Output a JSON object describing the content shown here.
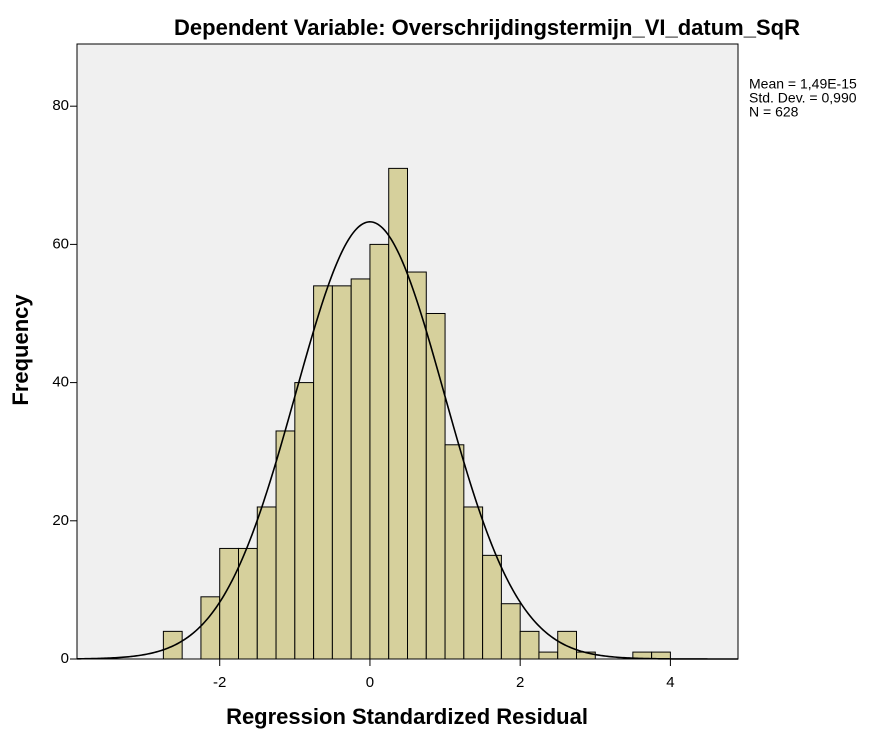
{
  "chart_data": {
    "type": "histogram",
    "title": "Dependent Variable: Overschrijdingstermijn_VI_datum_SqR",
    "xlabel": "Regression Standardized Residual",
    "ylabel": "Frequency",
    "bins": [
      -2.75,
      -2.5,
      -2.25,
      -2.0,
      -1.75,
      -1.5,
      -1.25,
      -1.0,
      -0.75,
      -0.5,
      -0.25,
      0,
      0.25,
      0.5,
      0.75,
      1.0,
      1.25,
      1.5,
      1.75,
      2.0,
      2.25,
      2.5,
      2.75,
      3.0,
      3.25,
      3.5,
      3.75,
      4.0
    ],
    "values": [
      4,
      0,
      9,
      16,
      16,
      22,
      33,
      40,
      54,
      54,
      55,
      60,
      71,
      56,
      50,
      31,
      22,
      15,
      8,
      4,
      1,
      4,
      1,
      0,
      0,
      1,
      1
    ],
    "color": "#d6d09c",
    "xlim": [
      -3.9,
      4.9
    ],
    "ylim": [
      0,
      89
    ],
    "xticks": [
      -2,
      0,
      2,
      4
    ],
    "yticks": [
      0,
      20,
      40,
      60,
      80
    ],
    "stats": [
      {
        "value": 1.49e-15,
        "label": "Mean = 1,49E-15"
      },
      {
        "value": 0.99,
        "label": "Std. Dev. = 0,990"
      },
      {
        "value": 628,
        "label": "N = 628"
      }
    ]
  }
}
